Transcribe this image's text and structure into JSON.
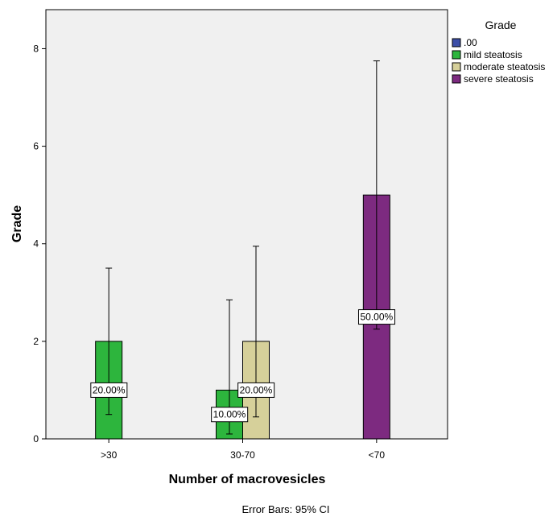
{
  "chart_data": {
    "type": "bar",
    "xlabel": "Number of macrovesicles",
    "ylabel": "Grade",
    "categories": [
      ">30",
      "30-70",
      "<70"
    ],
    "ylim": [
      0,
      8.8
    ],
    "yticks": [
      0,
      2,
      4,
      6,
      8
    ],
    "grid": false,
    "legend": {
      "title": "Grade",
      "placement": "right"
    },
    "series": [
      {
        "name": ".00",
        "color": "#3d4fa8",
        "values": [
          null,
          null,
          null
        ],
        "ci_low": [
          null,
          null,
          null
        ],
        "ci_high": [
          null,
          null,
          null
        ],
        "labels": [
          null,
          null,
          null
        ]
      },
      {
        "name": "mild steatosis",
        "color": "#2db53d",
        "values": [
          2,
          1,
          null
        ],
        "ci_low": [
          0.5,
          0.1,
          null
        ],
        "ci_high": [
          3.5,
          2.85,
          null
        ],
        "labels": [
          "20.00%",
          "10.00%",
          null
        ]
      },
      {
        "name": "moderate steatosis",
        "color": "#d6d09a",
        "values": [
          null,
          2,
          null
        ],
        "ci_low": [
          null,
          0.45,
          null
        ],
        "ci_high": [
          null,
          3.95,
          null
        ],
        "labels": [
          null,
          "20.00%",
          null
        ]
      },
      {
        "name": "severe steatosis",
        "color": "#7d2a80",
        "values": [
          null,
          null,
          5
        ],
        "ci_low": [
          null,
          null,
          2.25
        ],
        "ci_high": [
          null,
          null,
          7.75
        ],
        "labels": [
          null,
          null,
          "50.00%"
        ]
      }
    ],
    "footnote": "Error Bars: 95% CI"
  }
}
